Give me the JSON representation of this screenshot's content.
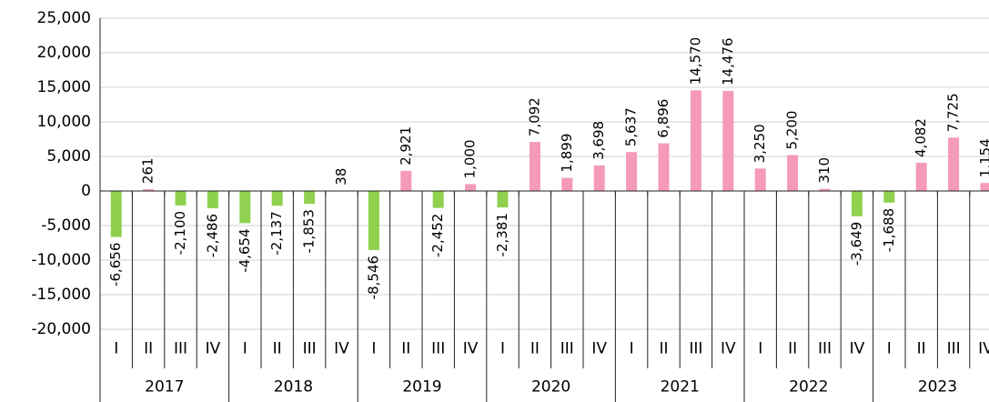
{
  "chart_data": {
    "type": "bar",
    "categories": [
      "I",
      "II",
      "III",
      "IV",
      "I",
      "II",
      "III",
      "IV",
      "I",
      "II",
      "III",
      "IV",
      "I",
      "II",
      "III",
      "IV",
      "I",
      "II",
      "III",
      "IV",
      "I",
      "II",
      "III",
      "IV",
      "I",
      "II",
      "III",
      "IV"
    ],
    "groups": [
      "2017",
      "2018",
      "2019",
      "2020",
      "2021",
      "2022",
      "2023"
    ],
    "values": [
      -6656,
      261,
      -2100,
      -2486,
      -4654,
      -2137,
      -1853,
      38,
      -8546,
      2921,
      -2452,
      1000,
      -2381,
      7092,
      1899,
      3698,
      5637,
      6896,
      14570,
      14476,
      3250,
      5200,
      310,
      -3649,
      -1688,
      4082,
      7725,
      1154
    ],
    "value_labels": [
      "-6,656",
      "261",
      "-2,100",
      "-2,486",
      "-4,654",
      "-2,137",
      "-1,853",
      "38",
      "-8,546",
      "2,921",
      "-2,452",
      "1,000",
      "-2,381",
      "7,092",
      "1,899",
      "3,698",
      "5,637",
      "6,896",
      "14,570",
      "14,476",
      "3,250",
      "5,200",
      "310",
      "-3,649",
      "-1,688",
      "4,082",
      "7,725",
      "1,154"
    ],
    "positive_color": "#f59ab8",
    "negative_color": "#8fd14f",
    "ylim": [
      -20000,
      25000
    ],
    "yticks": [
      {
        "value": -20000,
        "label": "-20,000"
      },
      {
        "value": -15000,
        "label": "-15,000"
      },
      {
        "value": -10000,
        "label": "-10,000"
      },
      {
        "value": -5000,
        "label": "-5,000"
      },
      0,
      {
        "value": 5000,
        "label": "5,000"
      },
      {
        "value": 10000,
        "label": "10,000"
      },
      {
        "value": 15000,
        "label": "15,000"
      },
      {
        "value": 20000,
        "label": "20,000"
      },
      {
        "value": 25000,
        "label": "25,000"
      }
    ],
    "grid": true
  }
}
